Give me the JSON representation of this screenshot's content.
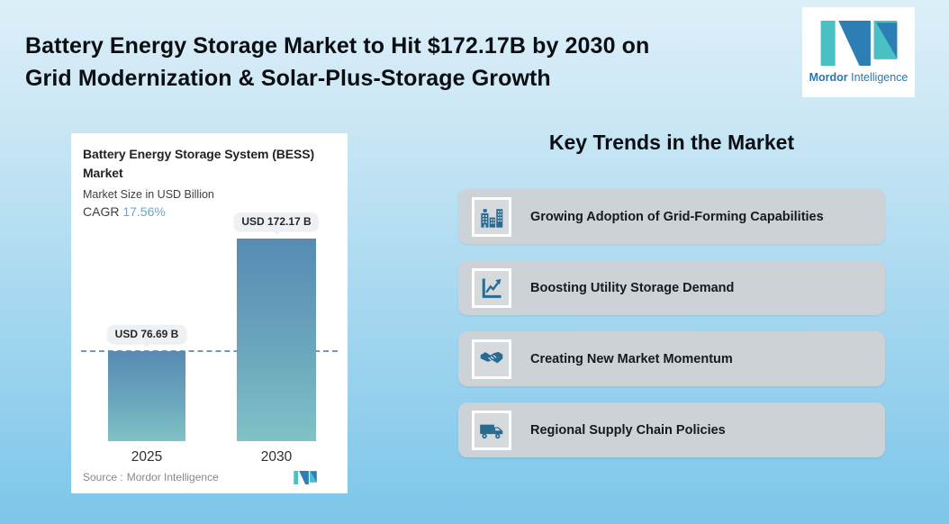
{
  "header": {
    "title_line1": "Battery Energy Storage Market to Hit $172.17B by 2030 on",
    "title_line2": "Grid Modernization & Solar-Plus-Storage Growth"
  },
  "brand": {
    "name_bold": "Mordor",
    "name_regular": "Intelligence",
    "logo_teal": "#4BC0C4",
    "logo_blue": "#2D7EB4"
  },
  "chart_card": {
    "title_line1": "Battery Energy Storage System (BESS)",
    "title_line2": "Market",
    "subtitle": "Market Size in USD Billion",
    "cagr_label": "CAGR",
    "cagr_value": "17.56%",
    "source_label": "Source :",
    "source_value": "Mordor Intelligence"
  },
  "chart_data": {
    "type": "bar",
    "title": "Battery Energy Storage System (BESS) Market",
    "ylabel": "Market Size in USD Billion",
    "categories": [
      "2025",
      "2030"
    ],
    "values": [
      76.69,
      172.17
    ],
    "value_labels": [
      "USD 76.69 B",
      "USD 172.17 B"
    ],
    "cagr_percent": 17.56,
    "ylim": [
      0,
      190
    ],
    "legend": "none",
    "grid": "off",
    "reference_line": "horizontal dashed line at 2025 value (76.69)",
    "bar_gradient_top": "#578BB3",
    "bar_gradient_bottom": "#80C2C6"
  },
  "trends": {
    "heading": "Key Trends in the Market",
    "items": [
      {
        "icon": "buildings-icon",
        "label": "Growing Adoption of Grid-Forming Capabilities"
      },
      {
        "icon": "line-chart-icon",
        "label": "Boosting Utility Storage Demand"
      },
      {
        "icon": "handshake-icon",
        "label": "Creating New Market Momentum"
      },
      {
        "icon": "truck-icon",
        "label": "Regional Supply Chain Policies"
      }
    ]
  },
  "colors": {
    "background_top": "#DCEFF9",
    "background_bottom": "#7CC6E9",
    "card_white": "#FFFFFF",
    "trend_card_bg": "#CDD2D6",
    "icon_blue": "#276B93",
    "cagr_accent": "#68A6CA",
    "dashed_line": "#6D9BC0",
    "title_text": "#0B0E13"
  }
}
